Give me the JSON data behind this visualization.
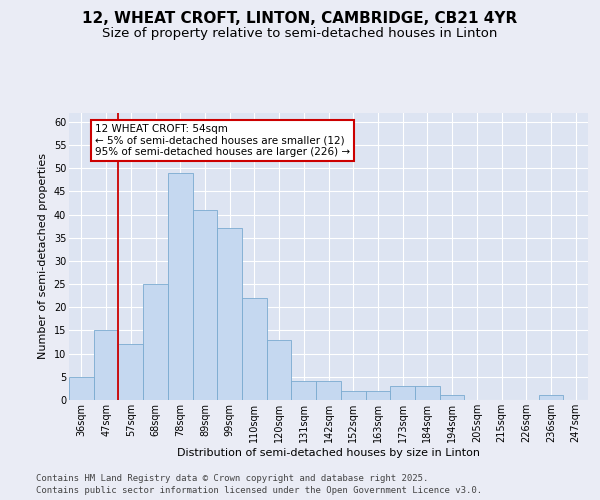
{
  "title_line1": "12, WHEAT CROFT, LINTON, CAMBRIDGE, CB21 4YR",
  "title_line2": "Size of property relative to semi-detached houses in Linton",
  "xlabel": "Distribution of semi-detached houses by size in Linton",
  "ylabel": "Number of semi-detached properties",
  "categories": [
    "36sqm",
    "47sqm",
    "57sqm",
    "68sqm",
    "78sqm",
    "89sqm",
    "99sqm",
    "110sqm",
    "120sqm",
    "131sqm",
    "142sqm",
    "152sqm",
    "163sqm",
    "173sqm",
    "184sqm",
    "194sqm",
    "205sqm",
    "215sqm",
    "226sqm",
    "236sqm",
    "247sqm"
  ],
  "values": [
    5,
    15,
    12,
    25,
    49,
    41,
    37,
    22,
    13,
    4,
    4,
    2,
    2,
    3,
    3,
    1,
    0,
    0,
    0,
    1,
    0
  ],
  "bar_color": "#c5d8f0",
  "bar_edge_color": "#7aaad0",
  "vline_index": 2,
  "vline_color": "#cc0000",
  "annotation_title": "12 WHEAT CROFT: 54sqm",
  "annotation_line1": "← 5% of semi-detached houses are smaller (12)",
  "annotation_line2": "95% of semi-detached houses are larger (226) →",
  "annotation_box_edgecolor": "#cc0000",
  "ylim_max": 62,
  "yticks": [
    0,
    5,
    10,
    15,
    20,
    25,
    30,
    35,
    40,
    45,
    50,
    55,
    60
  ],
  "bg_color": "#eaecf5",
  "plot_bg_color": "#dde4f2",
  "footer_line1": "Contains HM Land Registry data © Crown copyright and database right 2025.",
  "footer_line2": "Contains public sector information licensed under the Open Government Licence v3.0.",
  "title_fontsize": 11,
  "subtitle_fontsize": 9.5,
  "axis_label_fontsize": 8,
  "tick_fontsize": 7,
  "annot_fontsize": 7.5,
  "footer_fontsize": 6.5
}
